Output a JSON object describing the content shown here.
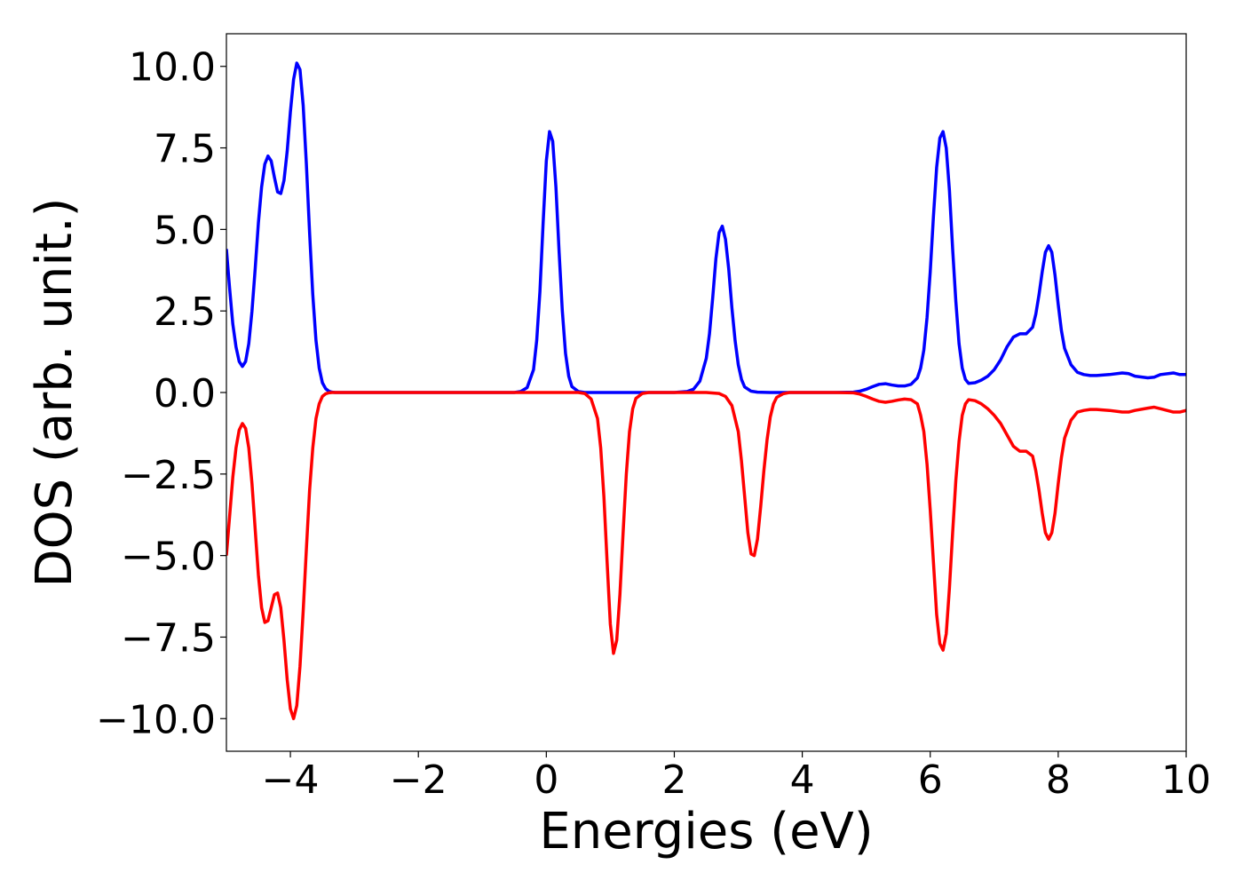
{
  "chart_data": {
    "type": "line",
    "title": "",
    "xlabel": "Energies (eV)",
    "ylabel": "DOS (arb. unit.)",
    "xlim": [
      -5,
      10
    ],
    "ylim": [
      -11,
      11
    ],
    "xticks": [
      -4,
      -2,
      0,
      2,
      4,
      6,
      8,
      10
    ],
    "xtick_labels": [
      "−4",
      "−2",
      "0",
      "2",
      "4",
      "6",
      "8",
      "10"
    ],
    "yticks": [
      10,
      7.5,
      5,
      2.5,
      0,
      -2.5,
      -5,
      -7.5,
      -10
    ],
    "ytick_labels": [
      "10.0",
      "7.5",
      "5.0",
      "2.5",
      "0.0",
      "−2.5",
      "−5.0",
      "−7.5",
      "−10.0"
    ],
    "grid": false,
    "legend": "none",
    "series": [
      {
        "color": "#0000ff",
        "x": [
          -5.0,
          -4.95,
          -4.9,
          -4.85,
          -4.8,
          -4.75,
          -4.7,
          -4.65,
          -4.6,
          -4.55,
          -4.5,
          -4.45,
          -4.4,
          -4.35,
          -4.3,
          -4.25,
          -4.2,
          -4.15,
          -4.1,
          -4.05,
          -4.0,
          -3.95,
          -3.9,
          -3.85,
          -3.8,
          -3.75,
          -3.7,
          -3.65,
          -3.6,
          -3.55,
          -3.5,
          -3.45,
          -3.4,
          -3.35,
          -3.3,
          -3.25,
          -3.2,
          -3.15,
          -3.1,
          -3.05,
          -3.0,
          -2.5,
          -1.0,
          -0.5,
          -0.4,
          -0.3,
          -0.2,
          -0.15,
          -0.1,
          -0.05,
          0.0,
          0.05,
          0.1,
          0.15,
          0.2,
          0.25,
          0.3,
          0.35,
          0.4,
          0.5,
          0.6,
          0.8,
          1.0,
          2.0,
          2.2,
          2.3,
          2.4,
          2.5,
          2.55,
          2.6,
          2.65,
          2.7,
          2.75,
          2.8,
          2.85,
          2.9,
          2.95,
          3.0,
          3.05,
          3.1,
          3.2,
          3.3,
          3.5,
          4.0,
          4.5,
          4.8,
          4.9,
          5.0,
          5.1,
          5.2,
          5.3,
          5.4,
          5.5,
          5.6,
          5.7,
          5.8,
          5.85,
          5.9,
          5.95,
          6.0,
          6.05,
          6.1,
          6.15,
          6.2,
          6.25,
          6.3,
          6.35,
          6.4,
          6.45,
          6.5,
          6.55,
          6.6,
          6.7,
          6.8,
          6.9,
          7.0,
          7.1,
          7.2,
          7.3,
          7.4,
          7.5,
          7.6,
          7.65,
          7.7,
          7.75,
          7.8,
          7.85,
          7.9,
          7.95,
          8.0,
          8.05,
          8.1,
          8.2,
          8.3,
          8.4,
          8.5,
          8.6,
          8.8,
          9.0,
          9.1,
          9.2,
          9.4,
          9.5,
          9.6,
          9.8,
          9.9,
          10.0
        ],
        "y": [
          4.4,
          3.2,
          2.1,
          1.4,
          0.95,
          0.8,
          0.95,
          1.5,
          2.5,
          3.8,
          5.2,
          6.3,
          7.0,
          7.25,
          7.1,
          6.6,
          6.15,
          6.1,
          6.5,
          7.4,
          8.6,
          9.6,
          10.1,
          9.9,
          8.8,
          7.0,
          4.9,
          3.0,
          1.6,
          0.75,
          0.3,
          0.12,
          0.04,
          0.01,
          0.0,
          0.0,
          0.0,
          0.0,
          0.0,
          0.0,
          0.0,
          0.0,
          0.0,
          0.0,
          0.03,
          0.15,
          0.7,
          1.6,
          3.1,
          5.2,
          7.1,
          8.0,
          7.7,
          6.3,
          4.3,
          2.5,
          1.2,
          0.5,
          0.18,
          0.03,
          0.0,
          0.0,
          0.0,
          0.0,
          0.03,
          0.1,
          0.35,
          1.05,
          1.8,
          2.9,
          4.1,
          4.9,
          5.1,
          4.7,
          3.8,
          2.6,
          1.6,
          0.85,
          0.4,
          0.17,
          0.04,
          0.01,
          0.0,
          0.0,
          0.0,
          0.01,
          0.04,
          0.1,
          0.18,
          0.25,
          0.27,
          0.23,
          0.2,
          0.2,
          0.25,
          0.45,
          0.75,
          1.3,
          2.3,
          3.7,
          5.4,
          6.9,
          7.8,
          8.0,
          7.5,
          6.2,
          4.4,
          2.8,
          1.5,
          0.75,
          0.4,
          0.28,
          0.3,
          0.38,
          0.5,
          0.7,
          1.0,
          1.4,
          1.7,
          1.8,
          1.8,
          2.0,
          2.4,
          3.0,
          3.7,
          4.3,
          4.5,
          4.3,
          3.6,
          2.7,
          1.9,
          1.35,
          0.85,
          0.62,
          0.55,
          0.52,
          0.52,
          0.55,
          0.6,
          0.58,
          0.5,
          0.45,
          0.47,
          0.55,
          0.6,
          0.55,
          0.55
        ]
      },
      {
        "color": "#ff0000",
        "x": [
          -5.0,
          -4.95,
          -4.9,
          -4.85,
          -4.8,
          -4.75,
          -4.7,
          -4.65,
          -4.6,
          -4.55,
          -4.5,
          -4.45,
          -4.4,
          -4.35,
          -4.3,
          -4.25,
          -4.2,
          -4.15,
          -4.1,
          -4.05,
          -4.0,
          -3.95,
          -3.9,
          -3.85,
          -3.8,
          -3.75,
          -3.7,
          -3.65,
          -3.6,
          -3.55,
          -3.5,
          -3.45,
          -3.4,
          -3.35,
          -3.3,
          -3.25,
          -3.2,
          -3.15,
          -3.1,
          -3.05,
          -3.0,
          -2.0,
          0.0,
          0.5,
          0.6,
          0.7,
          0.8,
          0.85,
          0.9,
          0.95,
          1.0,
          1.05,
          1.1,
          1.15,
          1.2,
          1.25,
          1.3,
          1.35,
          1.4,
          1.5,
          1.6,
          1.8,
          2.0,
          2.5,
          2.7,
          2.8,
          2.9,
          3.0,
          3.05,
          3.1,
          3.15,
          3.2,
          3.25,
          3.3,
          3.35,
          3.4,
          3.45,
          3.5,
          3.55,
          3.6,
          3.7,
          3.8,
          4.0,
          4.5,
          4.8,
          4.9,
          5.0,
          5.1,
          5.2,
          5.3,
          5.4,
          5.5,
          5.6,
          5.7,
          5.8,
          5.85,
          5.9,
          5.95,
          6.0,
          6.05,
          6.1,
          6.15,
          6.2,
          6.25,
          6.3,
          6.35,
          6.4,
          6.45,
          6.5,
          6.55,
          6.6,
          6.7,
          6.8,
          6.9,
          7.0,
          7.1,
          7.2,
          7.3,
          7.4,
          7.5,
          7.6,
          7.65,
          7.7,
          7.75,
          7.8,
          7.85,
          7.9,
          7.95,
          8.0,
          8.05,
          8.1,
          8.2,
          8.3,
          8.4,
          8.5,
          8.6,
          8.8,
          9.0,
          9.1,
          9.2,
          9.4,
          9.5,
          9.6,
          9.8,
          9.9,
          10.0
        ],
        "y": [
          -5.0,
          -3.8,
          -2.6,
          -1.7,
          -1.15,
          -0.95,
          -1.1,
          -1.7,
          -2.8,
          -4.2,
          -5.6,
          -6.6,
          -7.05,
          -7.0,
          -6.6,
          -6.2,
          -6.15,
          -6.6,
          -7.6,
          -8.8,
          -9.7,
          -10.0,
          -9.6,
          -8.4,
          -6.7,
          -4.8,
          -3.0,
          -1.7,
          -0.8,
          -0.35,
          -0.12,
          -0.04,
          -0.01,
          0.0,
          0.0,
          0.0,
          0.0,
          0.0,
          0.0,
          0.0,
          0.0,
          0.0,
          0.0,
          0.0,
          -0.03,
          -0.2,
          -0.8,
          -1.7,
          -3.2,
          -5.2,
          -7.1,
          -8.0,
          -7.6,
          -6.2,
          -4.3,
          -2.5,
          -1.2,
          -0.5,
          -0.18,
          -0.03,
          0.0,
          0.0,
          0.0,
          0.0,
          -0.03,
          -0.12,
          -0.4,
          -1.2,
          -2.1,
          -3.2,
          -4.3,
          -4.95,
          -5.0,
          -4.5,
          -3.5,
          -2.4,
          -1.45,
          -0.75,
          -0.35,
          -0.15,
          -0.04,
          0.0,
          0.0,
          0.0,
          -0.01,
          -0.05,
          -0.12,
          -0.2,
          -0.27,
          -0.3,
          -0.27,
          -0.23,
          -0.2,
          -0.22,
          -0.35,
          -0.7,
          -1.2,
          -2.2,
          -3.6,
          -5.2,
          -6.8,
          -7.7,
          -7.9,
          -7.4,
          -6.0,
          -4.3,
          -2.7,
          -1.5,
          -0.7,
          -0.35,
          -0.22,
          -0.25,
          -0.35,
          -0.5,
          -0.7,
          -0.95,
          -1.3,
          -1.65,
          -1.8,
          -1.8,
          -1.95,
          -2.4,
          -3.0,
          -3.7,
          -4.3,
          -4.5,
          -4.3,
          -3.7,
          -2.8,
          -2.0,
          -1.4,
          -0.85,
          -0.6,
          -0.55,
          -0.52,
          -0.52,
          -0.55,
          -0.6,
          -0.6,
          -0.55,
          -0.48,
          -0.45,
          -0.5,
          -0.6,
          -0.6,
          -0.55
        ]
      }
    ]
  }
}
